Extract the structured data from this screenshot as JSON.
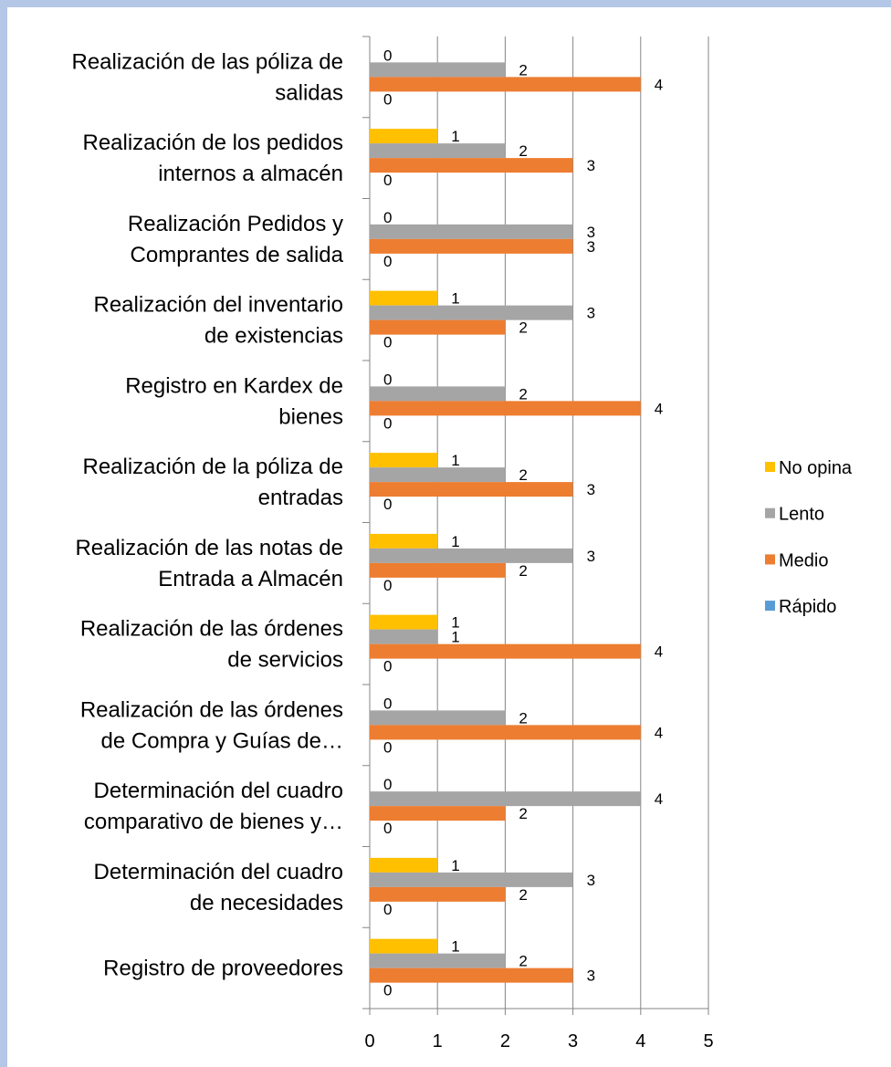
{
  "chart_data": {
    "type": "bar",
    "orientation": "horizontal",
    "categories": [
      "Realización de las póliza de\nsalidas",
      "Realización de los pedidos\ninternos a almacén",
      "Realización Pedidos y\nComprantes de salida",
      "Realización del inventario\nde existencias",
      "Registro en Kardex de\nbienes",
      "Realización de la póliza de\nentradas",
      "Realización de las notas de\nEntrada a Almacén",
      "Realización de las órdenes\nde servicios",
      "Realización de las órdenes\nde Compra y Guías de…",
      "Determinación del cuadro\ncomparativo de bienes y…",
      "Determinación del cuadro\nde necesidades",
      "Registro de proveedores"
    ],
    "series": [
      {
        "name": "No opina",
        "color": "#ffc000",
        "values": [
          0,
          1,
          0,
          1,
          0,
          1,
          1,
          1,
          0,
          0,
          1,
          1
        ]
      },
      {
        "name": "Lento",
        "color": "#a5a5a5",
        "values": [
          2,
          2,
          3,
          3,
          2,
          2,
          3,
          1,
          2,
          4,
          3,
          2
        ]
      },
      {
        "name": "Medio",
        "color": "#ed7d31",
        "values": [
          4,
          3,
          3,
          2,
          4,
          3,
          2,
          4,
          4,
          2,
          2,
          3
        ]
      },
      {
        "name": "Rápido",
        "color": "#5b9bd5",
        "values": [
          0,
          0,
          0,
          0,
          0,
          0,
          0,
          0,
          0,
          0,
          0,
          0
        ]
      }
    ],
    "xlim": [
      0,
      5
    ],
    "xticks": [
      0,
      1,
      2,
      3,
      4,
      5
    ],
    "grid": true,
    "legend": "right"
  }
}
